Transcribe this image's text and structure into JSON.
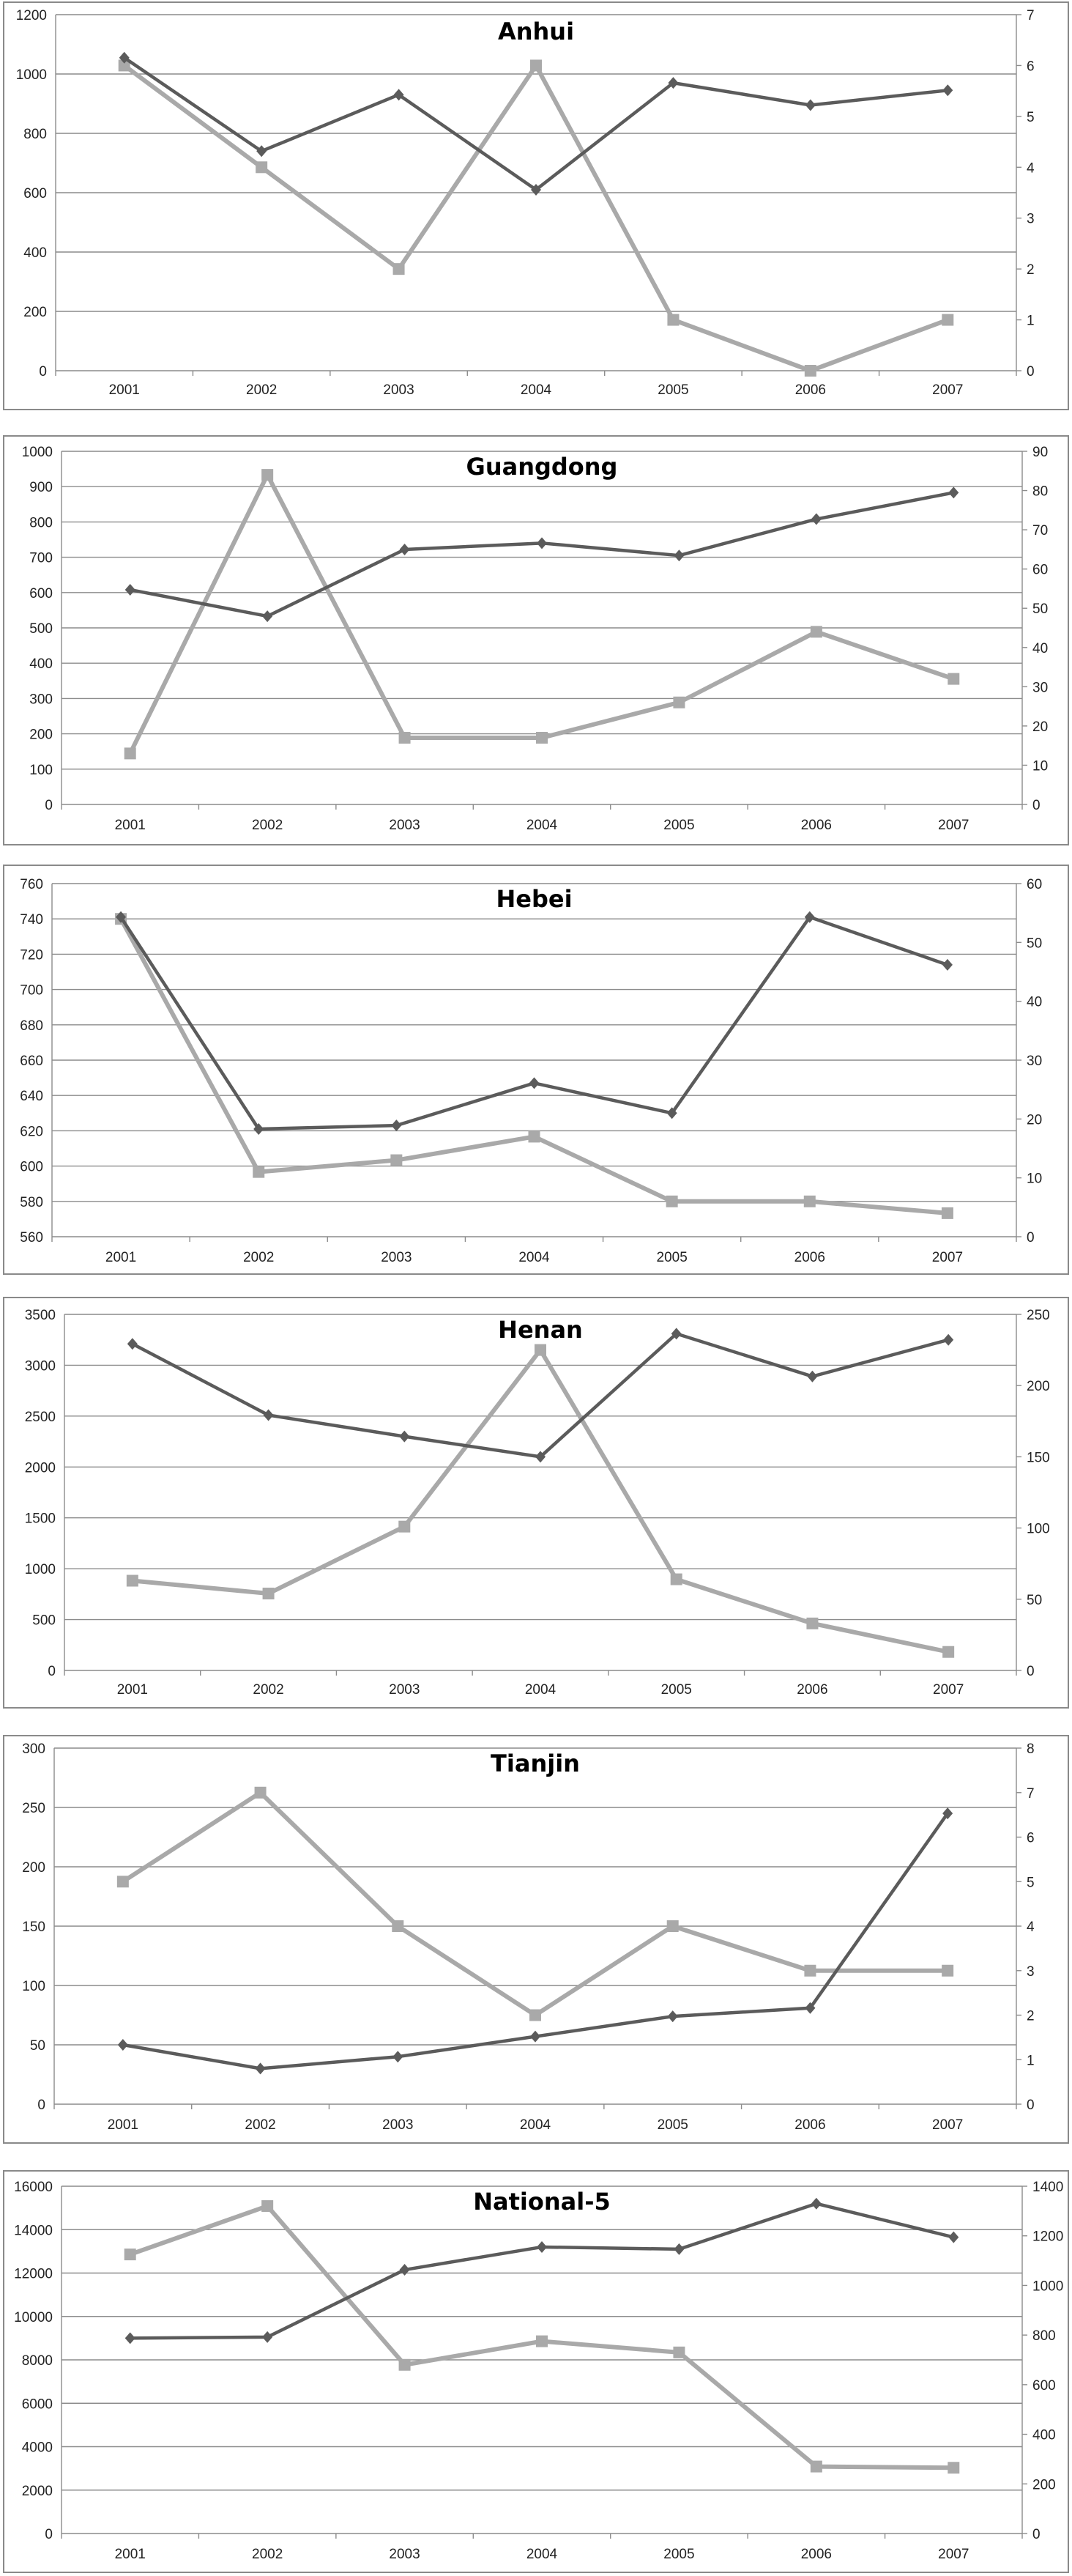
{
  "colors": {
    "dark_series": "#5b5b5b",
    "light_series": "#a9a9a9",
    "grid": "#8c8c8c"
  },
  "chart_data": [
    {
      "type": "line",
      "title": "Anhui",
      "categories": [
        "2001",
        "2002",
        "2003",
        "2004",
        "2005",
        "2006",
        "2007"
      ],
      "y_left": {
        "ylim": [
          0,
          1200
        ],
        "ticks": [
          0,
          200,
          400,
          600,
          800,
          1000,
          1200
        ]
      },
      "y_right": {
        "ylim": [
          0,
          7
        ],
        "ticks": [
          0,
          1,
          2,
          3,
          4,
          5,
          6,
          7
        ]
      },
      "series": [
        {
          "axis": "left",
          "marker": "diamond",
          "color": "#5b5b5b",
          "values": [
            1055,
            740,
            930,
            610,
            970,
            895,
            945
          ]
        },
        {
          "axis": "right",
          "marker": "square",
          "color": "#a9a9a9",
          "values": [
            6,
            4,
            2,
            6,
            1,
            0,
            1
          ]
        }
      ],
      "grid": true
    },
    {
      "type": "line",
      "title": "Guangdong",
      "categories": [
        "2001",
        "2002",
        "2003",
        "2004",
        "2005",
        "2006",
        "2007"
      ],
      "y_left": {
        "ylim": [
          0,
          1000
        ],
        "ticks": [
          0,
          100,
          200,
          300,
          400,
          500,
          600,
          700,
          800,
          900,
          1000
        ]
      },
      "y_right": {
        "ylim": [
          0,
          90
        ],
        "ticks": [
          0,
          10,
          20,
          30,
          40,
          50,
          60,
          70,
          80,
          90
        ]
      },
      "series": [
        {
          "axis": "left",
          "marker": "diamond",
          "color": "#5b5b5b",
          "values": [
            608,
            533,
            722,
            740,
            705,
            808,
            883
          ]
        },
        {
          "axis": "right",
          "marker": "square",
          "color": "#a9a9a9",
          "values": [
            13,
            84,
            17,
            17,
            26,
            44,
            32
          ]
        }
      ],
      "grid": true
    },
    {
      "type": "line",
      "title": "Hebei",
      "categories": [
        "2001",
        "2002",
        "2003",
        "2004",
        "2005",
        "2006",
        "2007"
      ],
      "y_left": {
        "ylim": [
          560,
          760
        ],
        "ticks": [
          560,
          580,
          600,
          620,
          640,
          660,
          680,
          700,
          720,
          740,
          760
        ]
      },
      "y_right": {
        "ylim": [
          0,
          60
        ],
        "ticks": [
          0,
          10,
          20,
          30,
          40,
          50,
          60
        ]
      },
      "series": [
        {
          "axis": "left",
          "marker": "diamond",
          "color": "#5b5b5b",
          "values": [
            741,
            621,
            623,
            647,
            630,
            741,
            714
          ]
        },
        {
          "axis": "right",
          "marker": "square",
          "color": "#a9a9a9",
          "values": [
            54,
            11,
            13,
            17,
            6,
            6,
            4
          ]
        }
      ],
      "grid": true
    },
    {
      "type": "line",
      "title": "Henan",
      "categories": [
        "2001",
        "2002",
        "2003",
        "2004",
        "2005",
        "2006",
        "2007"
      ],
      "y_left": {
        "ylim": [
          0,
          3500
        ],
        "ticks": [
          0,
          500,
          1000,
          1500,
          2000,
          2500,
          3000,
          3500
        ]
      },
      "y_right": {
        "ylim": [
          0,
          250
        ],
        "ticks": [
          0,
          50,
          100,
          150,
          200,
          250
        ]
      },
      "series": [
        {
          "axis": "left",
          "marker": "diamond",
          "color": "#5b5b5b",
          "values": [
            3210,
            2510,
            2300,
            2100,
            3310,
            2890,
            3250
          ]
        },
        {
          "axis": "right",
          "marker": "square",
          "color": "#a9a9a9",
          "values": [
            63,
            54,
            101,
            225,
            64,
            33,
            13
          ]
        }
      ],
      "grid": true
    },
    {
      "type": "line",
      "title": "Tianjin",
      "categories": [
        "2001",
        "2002",
        "2003",
        "2004",
        "2005",
        "2006",
        "2007"
      ],
      "y_left": {
        "ylim": [
          0,
          300
        ],
        "ticks": [
          0,
          50,
          100,
          150,
          200,
          250,
          300
        ]
      },
      "y_right": {
        "ylim": [
          0,
          8
        ],
        "ticks": [
          0,
          1,
          2,
          3,
          4,
          5,
          6,
          7,
          8
        ]
      },
      "series": [
        {
          "axis": "left",
          "marker": "diamond",
          "color": "#5b5b5b",
          "values": [
            50,
            30,
            40,
            57,
            74,
            81,
            245
          ]
        },
        {
          "axis": "right",
          "marker": "square",
          "color": "#a9a9a9",
          "values": [
            5,
            7,
            4,
            2,
            4,
            3,
            3
          ]
        }
      ],
      "grid": true
    },
    {
      "type": "line",
      "title": "National-5",
      "categories": [
        "2001",
        "2002",
        "2003",
        "2004",
        "2005",
        "2006",
        "2007"
      ],
      "y_left": {
        "ylim": [
          0,
          16000
        ],
        "ticks": [
          0,
          2000,
          4000,
          6000,
          8000,
          10000,
          12000,
          14000,
          16000
        ]
      },
      "y_right": {
        "ylim": [
          0,
          1400
        ],
        "ticks": [
          0,
          200,
          400,
          600,
          800,
          1000,
          1200,
          1400
        ]
      },
      "series": [
        {
          "axis": "left",
          "marker": "diamond",
          "color": "#5b5b5b",
          "values": [
            9000,
            9050,
            12150,
            13200,
            13100,
            15200,
            13650
          ]
        },
        {
          "axis": "right",
          "marker": "square",
          "color": "#a9a9a9",
          "values": [
            1125,
            1320,
            680,
            775,
            730,
            270,
            265
          ]
        }
      ],
      "grid": true
    }
  ]
}
